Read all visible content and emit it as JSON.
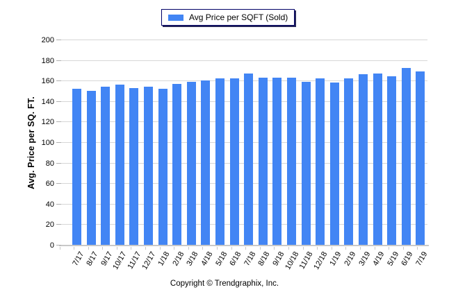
{
  "legend": {
    "label": "Avg Price per SQFT (Sold)"
  },
  "chart_data": {
    "type": "bar",
    "title": "",
    "legend": [
      "Avg Price per SQFT (Sold)"
    ],
    "legend_position": "top-center",
    "categories": [
      "7/17",
      "8/17",
      "9/17",
      "10/17",
      "11/17",
      "12/17",
      "1/18",
      "2/18",
      "3/18",
      "4/18",
      "5/18",
      "6/18",
      "7/18",
      "8/18",
      "9/18",
      "10/18",
      "11/18",
      "12/18",
      "1/19",
      "2/19",
      "3/19",
      "4/19",
      "5/19",
      "6/19",
      "7/19"
    ],
    "values": [
      152,
      150,
      154,
      156,
      153,
      154,
      152,
      157,
      159,
      160,
      162,
      162,
      167,
      163,
      163,
      163,
      159,
      162,
      158,
      162,
      166,
      167,
      164,
      172,
      169
    ],
    "xlabel": "",
    "ylabel": "Avg. Price per SQ. FT.",
    "ylim": [
      0,
      200
    ],
    "yticks": [
      0,
      20,
      40,
      60,
      80,
      100,
      120,
      140,
      160,
      180,
      200
    ],
    "grid": true,
    "bar_color": "#4285f4"
  },
  "colors": {
    "bar": "#4285f4",
    "gridline": "#d6d6d6",
    "axis_line": "#c8c8c8",
    "tick": "#b0b0b0",
    "legend_border": "#000066",
    "text": "#000000"
  },
  "footer": {
    "copyright": "Copyright © Trendgraphix, Inc."
  }
}
